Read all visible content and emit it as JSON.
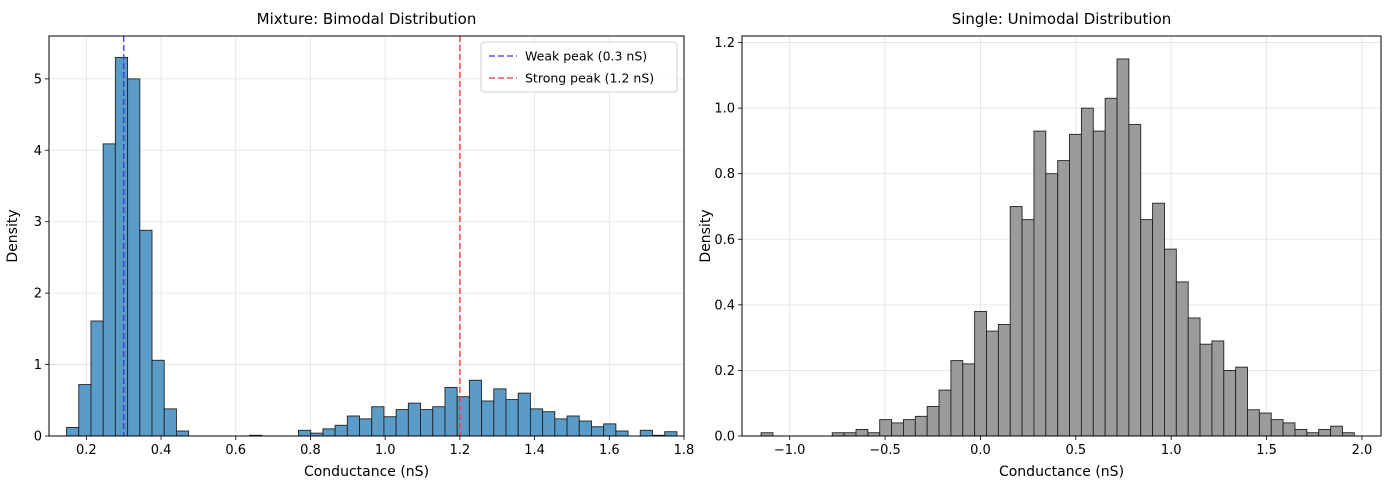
{
  "chart_data": [
    {
      "type": "bar",
      "subtype": "histogram",
      "title": "Mixture: Bimodal Distribution",
      "xlabel": "Conductance (nS)",
      "ylabel": "Density",
      "xlim": [
        0.1,
        1.8
      ],
      "ylim": [
        0,
        5.6
      ],
      "xticks": [
        0.2,
        0.4,
        0.6,
        0.8,
        1.0,
        1.2,
        1.4,
        1.6,
        1.8
      ],
      "xtick_labels": [
        "0.2",
        "0.4",
        "0.6",
        "0.8",
        "1.0",
        "1.2",
        "1.4",
        "1.6",
        "1.8"
      ],
      "yticks": [
        0,
        1,
        2,
        3,
        4,
        5
      ],
      "ytick_labels": [
        "0",
        "1",
        "2",
        "3",
        "4",
        "5"
      ],
      "grid": true,
      "bar_color": "#5b9bc8",
      "edge_color": "#222222",
      "bin_start": 0.147,
      "bin_width": 0.03268,
      "values": [
        0.12,
        0.72,
        1.61,
        4.09,
        5.3,
        5.0,
        2.88,
        1.06,
        0.38,
        0.07,
        0,
        0,
        0,
        0,
        0,
        0.01,
        0,
        0,
        0,
        0.08,
        0.04,
        0.1,
        0.15,
        0.28,
        0.24,
        0.41,
        0.27,
        0.37,
        0.46,
        0.37,
        0.41,
        0.68,
        0.55,
        0.78,
        0.49,
        0.66,
        0.51,
        0.6,
        0.38,
        0.34,
        0.24,
        0.28,
        0.21,
        0.13,
        0.17,
        0.07,
        0,
        0.08,
        0.01,
        0.06
      ],
      "reference_lines": [
        {
          "x": 0.3,
          "label": "Weak peak (0.3 nS)",
          "color": "#3a3ae6"
        },
        {
          "x": 1.2,
          "label": "Strong peak (1.2 nS)",
          "color": "#e83c3c"
        }
      ],
      "legend_position": "top-right"
    },
    {
      "type": "bar",
      "subtype": "histogram",
      "title": "Single: Unimodal Distribution",
      "xlabel": "Conductance (nS)",
      "ylabel": "Density",
      "xlim": [
        -1.25,
        2.1
      ],
      "ylim": [
        0,
        1.22
      ],
      "xticks": [
        -1.0,
        -0.5,
        0.0,
        0.5,
        1.0,
        1.5,
        2.0
      ],
      "xtick_labels": [
        "−1.0",
        "−0.5",
        "0.0",
        "0.5",
        "1.0",
        "1.5",
        "2.0"
      ],
      "yticks": [
        0.0,
        0.2,
        0.4,
        0.6,
        0.8,
        1.0,
        1.2
      ],
      "ytick_labels": [
        "0.0",
        "0.2",
        "0.4",
        "0.6",
        "0.8",
        "1.0",
        "1.2"
      ],
      "grid": true,
      "bar_color": "#9b9b9b",
      "edge_color": "#222222",
      "bin_start": -1.15,
      "bin_width": 0.0622,
      "values": [
        0.01,
        0,
        0,
        0,
        0,
        0,
        0.01,
        0.01,
        0.02,
        0.01,
        0.05,
        0.04,
        0.05,
        0.06,
        0.09,
        0.14,
        0.23,
        0.22,
        0.38,
        0.32,
        0.34,
        0.7,
        0.66,
        0.93,
        0.8,
        0.84,
        0.92,
        1.0,
        0.93,
        1.03,
        1.15,
        0.95,
        0.66,
        0.71,
        0.57,
        0.47,
        0.36,
        0.28,
        0.29,
        0.2,
        0.21,
        0.08,
        0.07,
        0.05,
        0.04,
        0.02,
        0.01,
        0.02,
        0.03,
        0.01
      ]
    }
  ]
}
